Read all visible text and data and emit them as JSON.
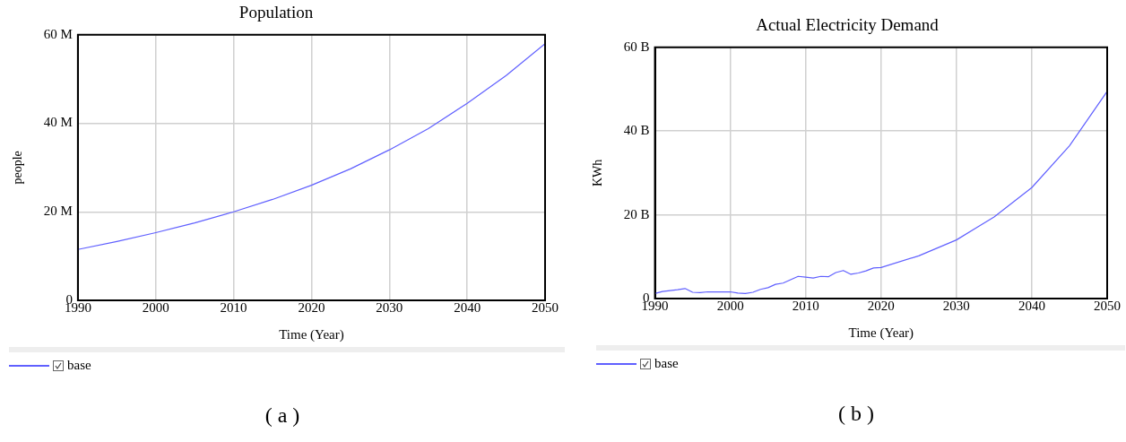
{
  "chart_data": [
    {
      "type": "line",
      "title": "Population",
      "xlabel": "Time (Year)",
      "ylabel": "people",
      "x": [
        1990,
        1995,
        2000,
        2005,
        2010,
        2015,
        2020,
        2025,
        2030,
        2035,
        2040,
        2045,
        2050
      ],
      "series": [
        {
          "name": "base",
          "color": "#6060ff",
          "values": [
            11500000,
            13300000,
            15300000,
            17500000,
            20000000,
            22800000,
            26000000,
            29700000,
            34000000,
            38800000,
            44500000,
            50800000,
            58000000
          ]
        }
      ],
      "xlim": [
        1990,
        2050
      ],
      "xticks": [
        1990,
        2000,
        2010,
        2020,
        2030,
        2040,
        2050
      ],
      "ylim": [
        0,
        60000000
      ],
      "yticks": [
        0,
        {
          "value": 20000000,
          "label": "20 M"
        },
        {
          "value": 40000000,
          "label": "40 M"
        },
        {
          "value": 60000000,
          "label": "60 M"
        }
      ],
      "grid": true,
      "legend": "bottom left",
      "annotations": [
        "( a )"
      ]
    },
    {
      "type": "line",
      "title": "Actual Electricity Demand",
      "xlabel": "Time (Year)",
      "ylabel": "KWh",
      "x": [
        1990,
        1991,
        1992,
        1993,
        1994,
        1995,
        1996,
        1997,
        1998,
        1999,
        2000,
        2001,
        2002,
        2003,
        2004,
        2005,
        2006,
        2007,
        2008,
        2009,
        2010,
        2011,
        2012,
        2013,
        2014,
        2015,
        2016,
        2017,
        2018,
        2019,
        2020,
        2025,
        2030,
        2035,
        2040,
        2045,
        2050
      ],
      "series": [
        {
          "name": "base",
          "color": "#6060ff",
          "values": [
            1200000000,
            1700000000,
            1900000000,
            2100000000,
            2400000000,
            1500000000,
            1400000000,
            1600000000,
            1600000000,
            1600000000,
            1600000000,
            1300000000,
            1200000000,
            1500000000,
            2200000000,
            2600000000,
            3400000000,
            3700000000,
            4500000000,
            5300000000,
            5100000000,
            4900000000,
            5300000000,
            5200000000,
            6200000000,
            6700000000,
            5800000000,
            6100000000,
            6600000000,
            7300000000,
            7400000000,
            10200000000,
            14000000000,
            19500000000,
            26500000000,
            36500000000,
            49500000000
          ]
        }
      ],
      "xlim": [
        1990,
        2050
      ],
      "xticks": [
        1990,
        2000,
        2010,
        2020,
        2030,
        2040,
        2050
      ],
      "ylim": [
        0,
        60000000000
      ],
      "yticks": [
        0,
        {
          "value": 20000000000,
          "label": "20 B"
        },
        {
          "value": 40000000000,
          "label": "40 B"
        },
        {
          "value": 60000000000,
          "label": "60 B"
        }
      ],
      "grid": true,
      "legend": "bottom left",
      "annotations": [
        "( b )"
      ]
    }
  ]
}
